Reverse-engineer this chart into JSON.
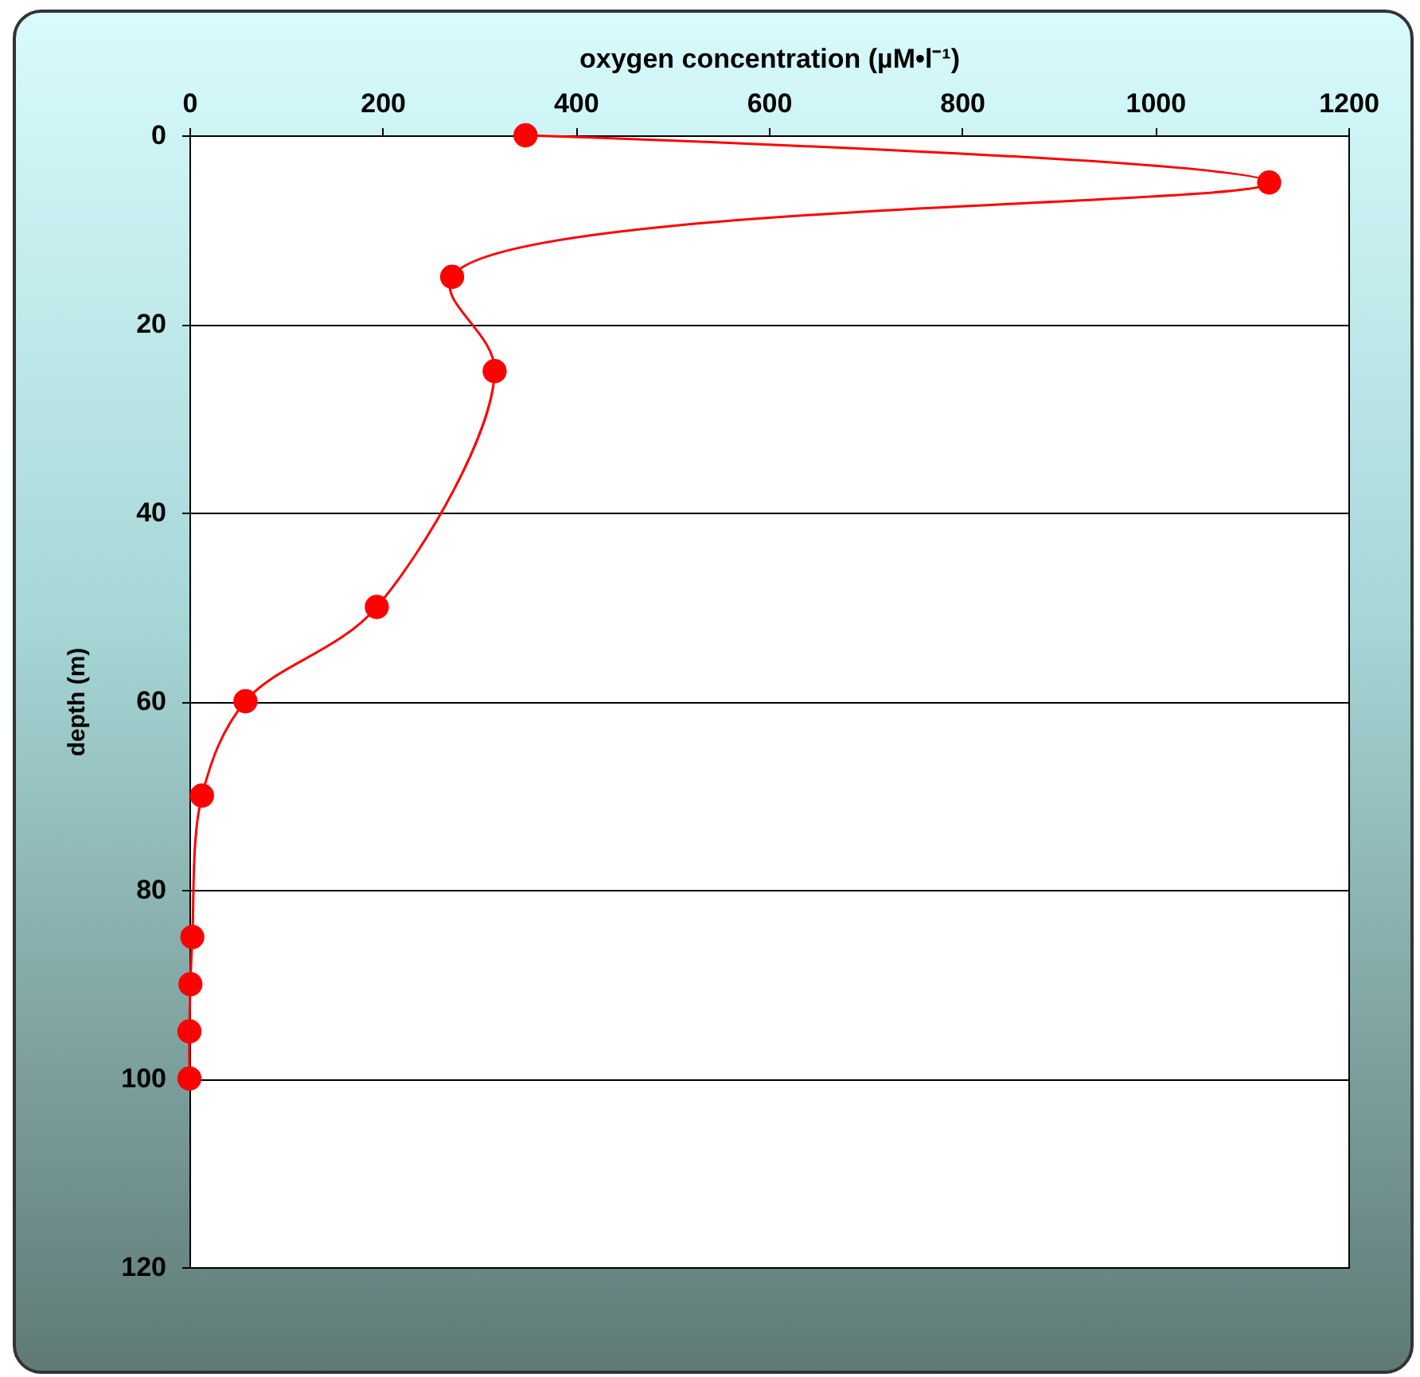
{
  "chart_data": {
    "type": "line",
    "xlabel": "oxygen concentration (µM•l⁻¹)",
    "ylabel": "depth (m)",
    "x": [
      348,
      1118,
      272,
      316,
      194,
      58,
      13,
      3,
      1,
      0,
      0
    ],
    "series": [
      {
        "color": "#ff0000",
        "values": [
          0,
          5,
          15,
          25,
          50,
          60,
          70,
          85,
          90,
          95,
          100
        ]
      }
    ],
    "xlim": [
      0,
      1200
    ],
    "xticks": [
      0,
      200,
      400,
      600,
      800,
      1000,
      1200
    ],
    "ylim": [
      120,
      0
    ],
    "yticks": [
      0,
      20,
      40,
      60,
      80,
      100,
      120
    ],
    "grid": "y",
    "marker": "circle",
    "line_style": "solid"
  }
}
